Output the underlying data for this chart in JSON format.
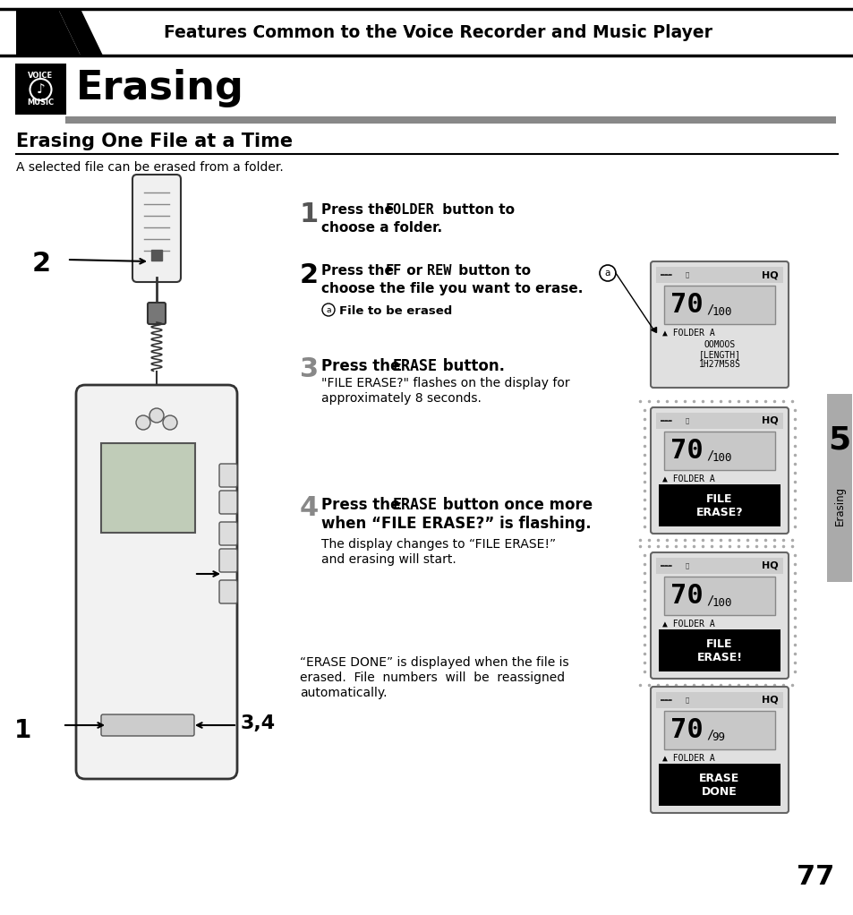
{
  "page_bg": "#ffffff",
  "header_text": "Features Common to the Voice Recorder and Music Player",
  "title": "Erasing",
  "section_title": "Erasing One File at a Time",
  "section_desc": "A selected file can be erased from a folder.",
  "page_number": "77",
  "chapter_number": "5",
  "chapter_label": "Erasing",
  "step1_line1_pre": "Press the ",
  "step1_line1_bold": "FOLDER",
  "step1_line1_post": " button to",
  "step1_line2": "choose a folder.",
  "step2_line1_pre": "Press the ",
  "step2_line1_b1": "FF",
  "step2_line1_mid": " or ",
  "step2_line1_b2": "REW",
  "step2_line1_post": " button to",
  "step2_line2": "choose the file you want to erase.",
  "step2_sub": "File to be erased",
  "step3_line1_pre": "Press the ",
  "step3_line1_bold": "ERASE",
  "step3_line1_post": " button.",
  "step3_line2": "\"FILE ERASE?\" flashes on the display for",
  "step3_line3": "approximately 8 seconds.",
  "step4_line1_pre": "Press the ",
  "step4_line1_bold": "ERASE",
  "step4_line1_post": " button once more",
  "step4_line2": "when “FILE ERASE?” is flashing.",
  "step4_line3": "The display changes to “FILE ERASE!”",
  "step4_line4": "and erasing will start.",
  "bottom1": "“ERASE DONE” is displayed when the file is",
  "bottom2": "erased.  File  numbers  will  be  reassigned",
  "bottom3": "automatically.",
  "lcd1_num": "70",
  "lcd1_den": "100",
  "lcd1_info": [
    "OOMOOS",
    "[LENGTH]",
    "1H27M58S"
  ],
  "lcd2_num": "70",
  "lcd2_den": "100",
  "lcd2_bar": "FILE\nERASE?",
  "lcd3_num": "70",
  "lcd3_den": "100",
  "lcd3_bar": "FILE\nERASE!",
  "lcd4_num": "70",
  "lcd4_den": "99",
  "lcd4_bar": "ERASE\nDONE",
  "header_bg": "#000000",
  "header_line_color": "#000000",
  "gray_bar_color": "#888888",
  "tab_color": "#aaaaaa",
  "black": "#000000",
  "white": "#ffffff",
  "lcd_bg": "#e0e0e0",
  "lcd_top_bg": "#cccccc",
  "lcd_num_bg": "#c8c8c8",
  "lcd_border": "#666666"
}
